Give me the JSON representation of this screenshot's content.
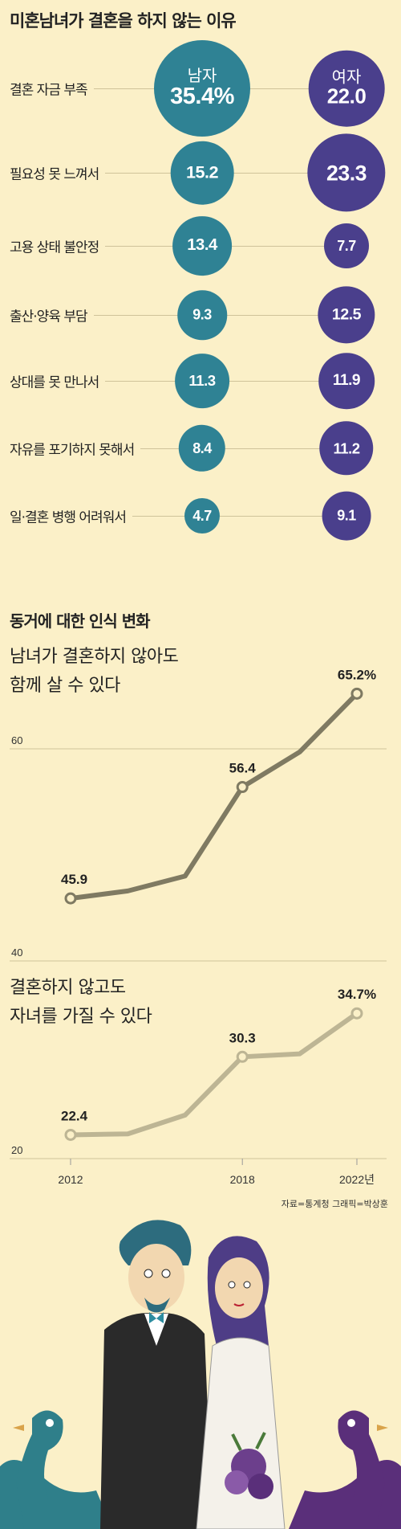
{
  "chart_data": [
    {
      "type": "bubble",
      "title": "미혼남녀가 결혼을 하지 않는 이유",
      "series": [
        {
          "name": "남자",
          "color": "#2f8294"
        },
        {
          "name": "여자",
          "color": "#4a3f8c"
        }
      ],
      "categories": [
        "결혼 자금 부족",
        "필요성 못 느껴서",
        "고용 상태 불안정",
        "출산·양육 부담",
        "상대를 못 만나서",
        "자유를 포기하지 못해서",
        "일·결혼 병행 어려워서"
      ],
      "rows": [
        {
          "male": 35.4,
          "female": 22.0,
          "male_label": "35.4%",
          "female_label": "22.0"
        },
        {
          "male": 15.2,
          "female": 23.3,
          "male_label": "15.2",
          "female_label": "23.3"
        },
        {
          "male": 13.4,
          "female": 7.7,
          "male_label": "13.4",
          "female_label": "7.7"
        },
        {
          "male": 9.3,
          "female": 12.5,
          "male_label": "9.3",
          "female_label": "12.5"
        },
        {
          "male": 11.3,
          "female": 11.9,
          "male_label": "11.3",
          "female_label": "11.9"
        },
        {
          "male": 8.4,
          "female": 11.2,
          "male_label": "8.4",
          "female_label": "11.2"
        },
        {
          "male": 4.7,
          "female": 9.1,
          "male_label": "4.7",
          "female_label": "9.1"
        }
      ]
    },
    {
      "type": "line",
      "title": "동거에 대한 인식 변화",
      "x": [
        2012,
        2014,
        2016,
        2018,
        2020,
        2022
      ],
      "x_tick_labels": [
        "2012",
        "2018",
        "2022년"
      ],
      "ylim": [
        20,
        70
      ],
      "y_ticks": [
        20,
        40,
        60
      ],
      "series": [
        {
          "name": "남녀가 결혼하지 않아도\n함께 살 수 있다",
          "values": [
            45.9,
            46.6,
            48.0,
            56.4,
            59.7,
            65.2
          ],
          "labels": [
            "45.9",
            null,
            null,
            "56.4",
            null,
            "65.2%"
          ],
          "color": "#7f7a62"
        },
        {
          "name": "결혼하지 않고도\n자녀를 가질 수 있다",
          "values": [
            22.4,
            22.5,
            24.4,
            30.3,
            30.6,
            34.7
          ],
          "labels": [
            "22.4",
            null,
            null,
            "30.3",
            null,
            "34.7%"
          ],
          "color": "#bdb594"
        }
      ]
    }
  ],
  "source": "자료=통계청   그래픽=박상훈",
  "illustration": "couple-illustration"
}
